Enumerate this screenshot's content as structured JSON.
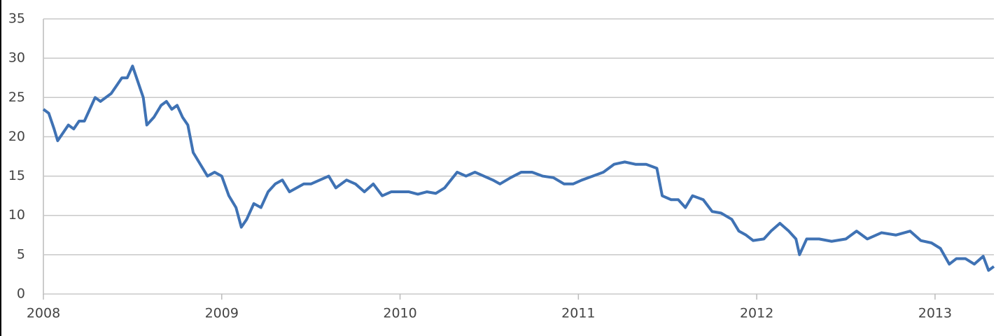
{
  "chart_data": {
    "type": "line",
    "x": [
      2008.0,
      2008.03,
      2008.06,
      2008.08,
      2008.11,
      2008.14,
      2008.17,
      2008.2,
      2008.23,
      2008.26,
      2008.29,
      2008.32,
      2008.35,
      2008.38,
      2008.41,
      2008.44,
      2008.47,
      2008.5,
      2008.53,
      2008.56,
      2008.58,
      2008.62,
      2008.66,
      2008.69,
      2008.72,
      2008.75,
      2008.78,
      2008.81,
      2008.84,
      2008.88,
      2008.92,
      2008.96,
      2009.0,
      2009.04,
      2009.08,
      2009.11,
      2009.14,
      2009.18,
      2009.22,
      2009.26,
      2009.3,
      2009.34,
      2009.38,
      2009.42,
      2009.46,
      2009.5,
      2009.55,
      2009.6,
      2009.64,
      2009.7,
      2009.75,
      2009.8,
      2009.85,
      2009.9,
      2009.95,
      2010.0,
      2010.05,
      2010.1,
      2010.15,
      2010.2,
      2010.25,
      2010.32,
      2010.37,
      2010.42,
      2010.47,
      2010.52,
      2010.56,
      2010.62,
      2010.68,
      2010.74,
      2010.8,
      2010.86,
      2010.92,
      2010.97,
      2011.02,
      2011.08,
      2011.14,
      2011.2,
      2011.26,
      2011.32,
      2011.38,
      2011.44,
      2011.47,
      2011.52,
      2011.56,
      2011.6,
      2011.64,
      2011.7,
      2011.75,
      2011.8,
      2011.86,
      2011.9,
      2011.94,
      2011.98,
      2012.04,
      2012.08,
      2012.13,
      2012.18,
      2012.22,
      2012.24,
      2012.28,
      2012.35,
      2012.42,
      2012.5,
      2012.56,
      2012.62,
      2012.7,
      2012.78,
      2012.86,
      2012.92,
      2012.98,
      2013.03,
      2013.08,
      2013.12,
      2013.17,
      2013.22,
      2013.27,
      2013.3,
      2013.33
    ],
    "series": [
      {
        "color": "#3f72b4",
        "values": [
          23.5,
          23,
          21,
          19.5,
          20.5,
          21.5,
          21,
          22,
          22,
          23.5,
          25,
          24.5,
          25,
          25.5,
          26.5,
          27.5,
          27.5,
          29,
          27,
          25,
          21.5,
          22.5,
          24,
          24.5,
          23.5,
          24,
          22.5,
          21.5,
          18,
          16.5,
          15,
          15.5,
          15,
          12.5,
          11,
          8.5,
          9.5,
          11.5,
          11,
          13,
          14,
          14.5,
          13,
          13.5,
          14,
          14,
          14.5,
          15,
          13.5,
          14.5,
          14,
          13,
          14,
          12.5,
          13,
          13,
          13,
          12.7,
          13,
          12.8,
          13.5,
          15.5,
          15,
          15.5,
          15,
          14.5,
          14,
          14.8,
          15.5,
          15.5,
          15,
          14.8,
          14,
          14,
          14.5,
          15,
          15.5,
          16.5,
          16.8,
          16.5,
          16.5,
          16,
          12.5,
          12,
          12,
          11,
          12.5,
          12,
          10.5,
          10.3,
          9.5,
          8,
          7.5,
          6.8,
          7,
          8,
          9,
          8,
          7,
          5,
          7,
          7,
          6.7,
          7,
          8,
          7,
          7.8,
          7.5,
          8,
          6.8,
          6.5,
          5.8,
          3.8,
          4.5,
          4.5,
          3.8,
          4.8,
          3,
          3.5
        ]
      }
    ],
    "xlim": [
      2008,
      2013.33
    ],
    "xticks": [
      2008,
      2009,
      2010,
      2011,
      2012,
      2013
    ],
    "ylim": [
      0,
      35
    ],
    "yticks": [
      0,
      5,
      10,
      15,
      20,
      25,
      30,
      35
    ],
    "grid": true
  }
}
